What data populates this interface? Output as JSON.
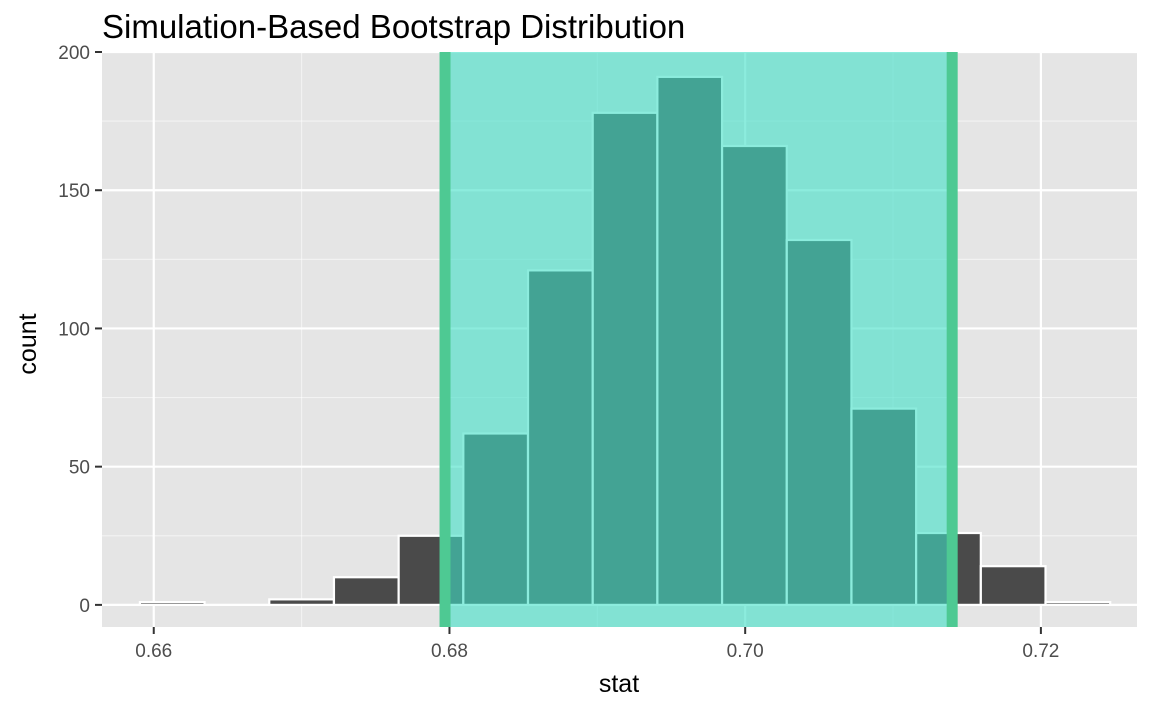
{
  "colors": {
    "panel_bg": "#e5e5e5",
    "grid_major": "#ffffff",
    "bar_fill": "#4a4a4a",
    "bar_outline": "#ffffff",
    "ci_fill": "#40e0c6",
    "ci_line": "#4ec993"
  },
  "chart_data": {
    "type": "bar",
    "title": "Simulation-Based Bootstrap Distribution",
    "xlabel": "stat",
    "ylabel": "count",
    "xlim": [
      0.6565,
      0.7265
    ],
    "ylim": [
      -8,
      200
    ],
    "x_ticks": [
      0.66,
      0.68,
      0.7,
      0.72
    ],
    "x_tick_labels": [
      "0.66",
      "0.68",
      "0.70",
      "0.72"
    ],
    "y_ticks": [
      0,
      50,
      100,
      150,
      200
    ],
    "y_tick_labels": [
      "0",
      "50",
      "100",
      "150",
      "200"
    ],
    "grid": true,
    "bin_width": 0.004375,
    "bins": [
      {
        "x": 0.66125,
        "count": 1
      },
      {
        "x": 0.665625,
        "count": 0
      },
      {
        "x": 0.67,
        "count": 2
      },
      {
        "x": 0.674375,
        "count": 10
      },
      {
        "x": 0.67875,
        "count": 25
      },
      {
        "x": 0.683125,
        "count": 62
      },
      {
        "x": 0.6875,
        "count": 121
      },
      {
        "x": 0.691875,
        "count": 178
      },
      {
        "x": 0.69625,
        "count": 191
      },
      {
        "x": 0.700625,
        "count": 166
      },
      {
        "x": 0.705,
        "count": 132
      },
      {
        "x": 0.709375,
        "count": 71
      },
      {
        "x": 0.71375,
        "count": 26
      },
      {
        "x": 0.718125,
        "count": 14
      },
      {
        "x": 0.7225,
        "count": 1
      }
    ],
    "confidence_interval": {
      "lower": 0.6797,
      "upper": 0.714
    }
  }
}
